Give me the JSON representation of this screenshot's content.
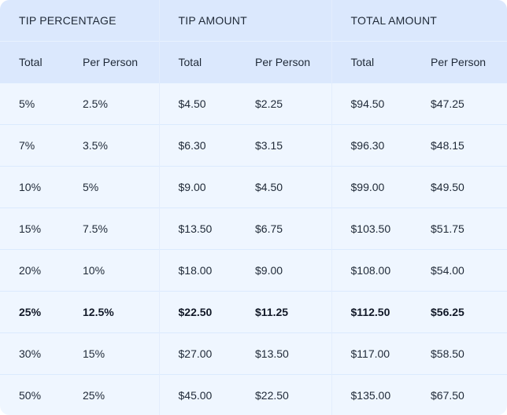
{
  "groups": [
    "TIP PERCENTAGE",
    "TIP AMOUNT",
    "TOTAL AMOUNT"
  ],
  "subheaders": [
    "Total",
    "Per Person",
    "Total",
    "Per Person",
    "Total",
    "Per Person"
  ],
  "rows": [
    {
      "cells": [
        "5%",
        "2.5%",
        "$4.50",
        "$2.25",
        "$94.50",
        "$47.25"
      ],
      "highlighted": false
    },
    {
      "cells": [
        "7%",
        "3.5%",
        "$6.30",
        "$3.15",
        "$96.30",
        "$48.15"
      ],
      "highlighted": false
    },
    {
      "cells": [
        "10%",
        "5%",
        "$9.00",
        "$4.50",
        "$99.00",
        "$49.50"
      ],
      "highlighted": false
    },
    {
      "cells": [
        "15%",
        "7.5%",
        "$13.50",
        "$6.75",
        "$103.50",
        "$51.75"
      ],
      "highlighted": false
    },
    {
      "cells": [
        "20%",
        "10%",
        "$18.00",
        "$9.00",
        "$108.00",
        "$54.00"
      ],
      "highlighted": false
    },
    {
      "cells": [
        "25%",
        "12.5%",
        "$22.50",
        "$11.25",
        "$112.50",
        "$56.25"
      ],
      "highlighted": true
    },
    {
      "cells": [
        "30%",
        "15%",
        "$27.00",
        "$13.50",
        "$117.00",
        "$58.50"
      ],
      "highlighted": false
    },
    {
      "cells": [
        "50%",
        "25%",
        "$45.00",
        "$22.50",
        "$135.00",
        "$67.50"
      ],
      "highlighted": false
    }
  ],
  "colors": {
    "header_bg": "#dbe8fd",
    "body_bg": "#eff6ff",
    "border": "#dbeafe",
    "text": "#1f2937"
  }
}
